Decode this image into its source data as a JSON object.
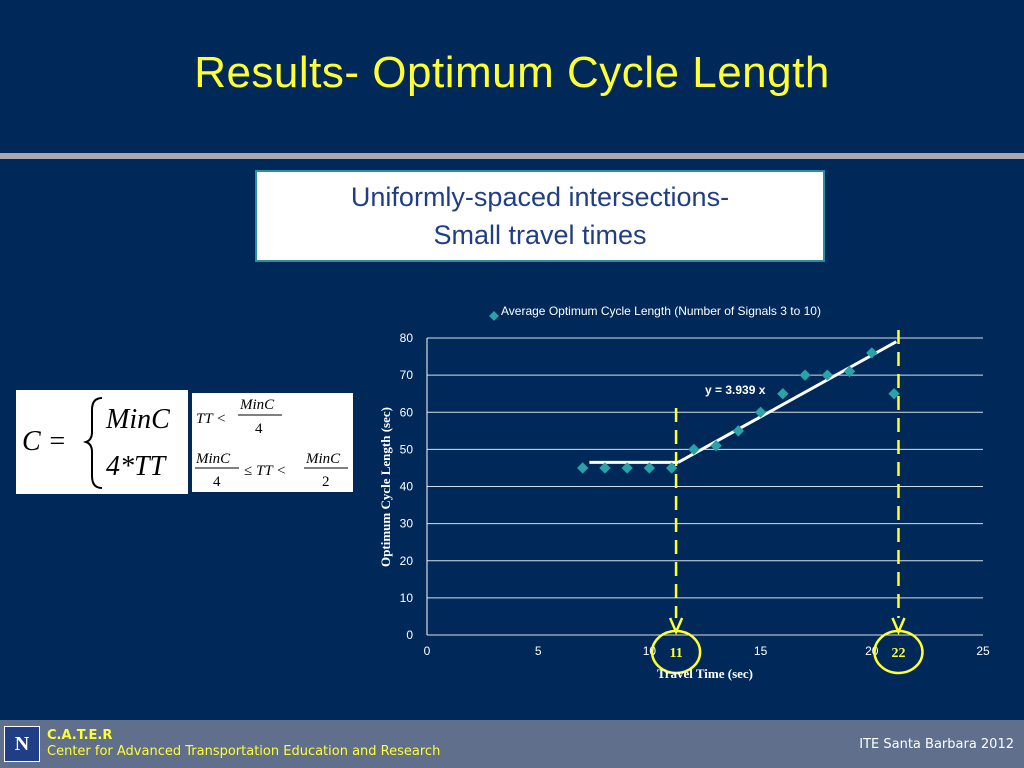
{
  "slide": {
    "title": "Results- Optimum Cycle Length",
    "subtitle_line1": "Uniformly-spaced intersections-",
    "subtitle_line2": "Small travel times"
  },
  "formula": {
    "lhs": "C =",
    "case1": "MinC",
    "case2": "4*TT",
    "cond1_left": "TT <",
    "cond1_num": "MinC",
    "cond1_den": "4",
    "cond2_num_a": "MinC",
    "cond2_den_a": "4",
    "cond2_mid": "≤ TT <",
    "cond2_num_b": "MinC",
    "cond2_den_b": "2"
  },
  "chart_data": {
    "type": "scatter",
    "legend": "Average Optimum Cycle Length (Number of Signals 3 to 10)",
    "legend_position": "top",
    "xlabel": "Travel Time (sec)",
    "ylabel": "Optimum Cycle Length (sec)",
    "xlim": [
      0,
      25
    ],
    "ylim": [
      0,
      80
    ],
    "xticks": [
      "0",
      "5",
      "10",
      "15",
      "20",
      "25"
    ],
    "yticks": [
      "0",
      "10",
      "20",
      "30",
      "40",
      "50",
      "60",
      "70",
      "80"
    ],
    "grid": "horizontal",
    "points": [
      {
        "x": 7,
        "y": 45
      },
      {
        "x": 8,
        "y": 45
      },
      {
        "x": 9,
        "y": 45
      },
      {
        "x": 10,
        "y": 45
      },
      {
        "x": 11,
        "y": 45
      },
      {
        "x": 12,
        "y": 50
      },
      {
        "x": 13,
        "y": 51
      },
      {
        "x": 14,
        "y": 55
      },
      {
        "x": 15,
        "y": 60
      },
      {
        "x": 16,
        "y": 65
      },
      {
        "x": 17,
        "y": 70
      },
      {
        "x": 18,
        "y": 70
      },
      {
        "x": 19,
        "y": 71
      },
      {
        "x": 20,
        "y": 76
      },
      {
        "x": 21,
        "y": 65
      }
    ],
    "fit_segments": [
      {
        "x1": 7.3,
        "y1": 46.5,
        "x2": 11.3,
        "y2": 46.5
      },
      {
        "x1": 11.3,
        "y1": 46.5,
        "x2": 21.1,
        "y2": 79
      }
    ],
    "fit_label": "y = 3.939 x",
    "fit_label_at": {
      "x": 12.5,
      "y": 66
    },
    "markers": [
      {
        "label": "11",
        "x": 11.2
      },
      {
        "label": "22",
        "x": 21.2
      }
    ],
    "colors": {
      "points": "#2aa3a8",
      "fit": "#ffffff",
      "marker": "#ffff33",
      "text": "#ffffff",
      "grid": "#ffffff"
    }
  },
  "footer": {
    "logo_letter": "N",
    "org_short": "C.A.T.E.R",
    "org_full": "Center for Advanced Transportation Education and Research",
    "event": "ITE Santa Barbara 2012"
  }
}
